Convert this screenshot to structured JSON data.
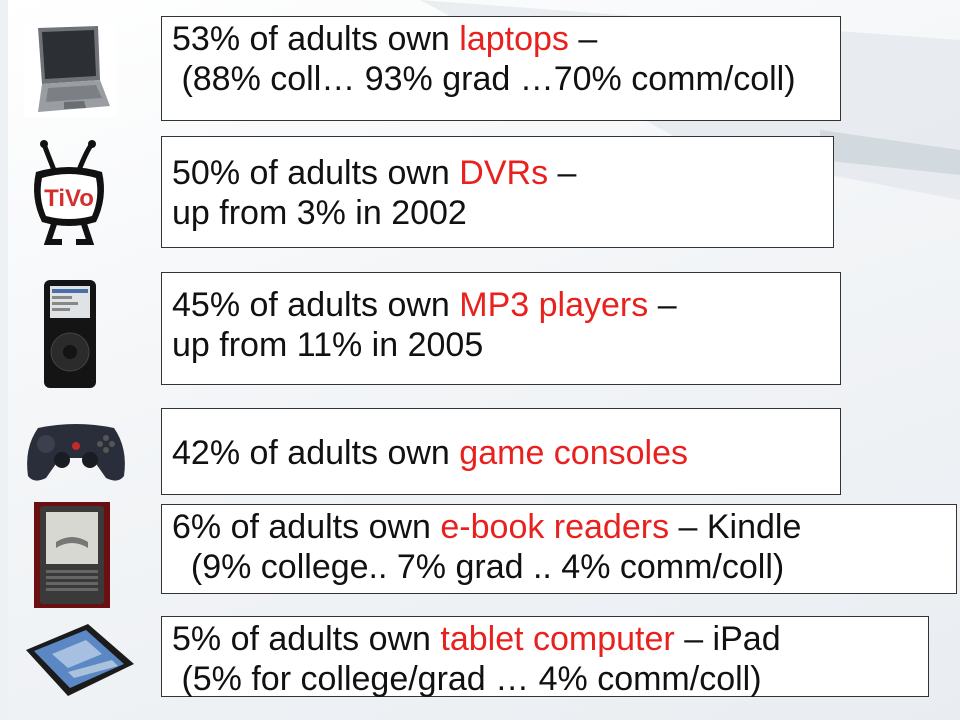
{
  "colors": {
    "highlight": "#e8211f",
    "text": "#111111",
    "box_border": "#333333"
  },
  "items": [
    {
      "icon": "laptop-icon",
      "line1": {
        "pre": "53% of adults own ",
        "hl": "laptops",
        "post": " –"
      },
      "line2": " (88% coll… 93% grad …70% comm/coll)"
    },
    {
      "icon": "tivo-dvr-icon",
      "line1": {
        "pre": "50% of adults own ",
        "hl": "DVRs",
        "post": " –"
      },
      "line2": "up from 3% in 2002",
      "logo_text": "TiVo"
    },
    {
      "icon": "ipod-mp3-player-icon",
      "line1": {
        "pre": "45% of adults own ",
        "hl": "MP3 players",
        "post": " –"
      },
      "line2": "up from 11% in 2005"
    },
    {
      "icon": "game-controller-icon",
      "line1": {
        "pre": "42% of adults own ",
        "hl": "game consoles",
        "post": ""
      }
    },
    {
      "icon": "kindle-ereader-icon",
      "line1": {
        "pre": "6% of adults own ",
        "hl": "e-book readers",
        "post": " – Kindle"
      },
      "line2": "  (9% college.. 7% grad .. 4% comm/coll)"
    },
    {
      "icon": "ipad-tablet-icon",
      "line1": {
        "pre": "5% of adults own ",
        "hl": "tablet computer",
        "post": " – iPad"
      },
      "line2": " (5% for college/grad … 4% comm/coll)"
    }
  ]
}
